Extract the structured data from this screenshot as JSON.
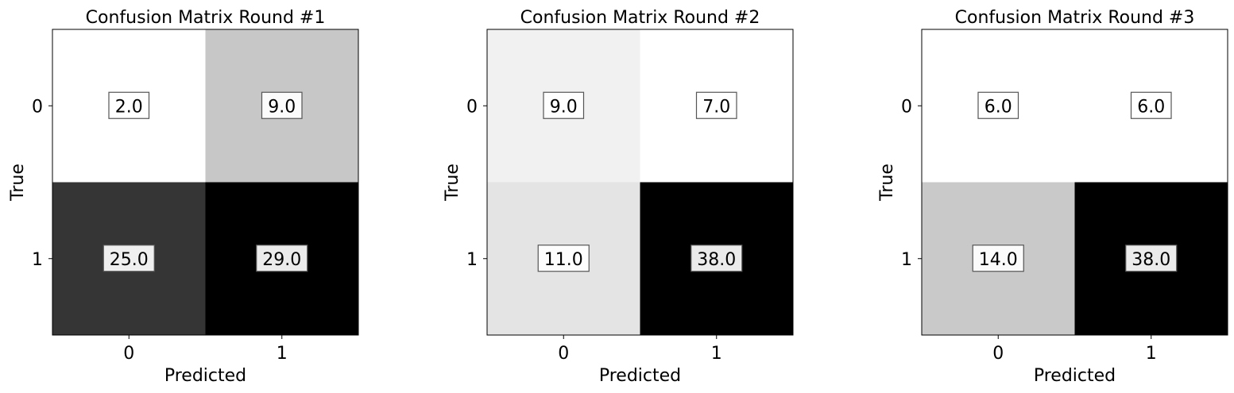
{
  "chart_data": [
    {
      "type": "heatmap",
      "title": "Confusion Matrix Round #1",
      "xlabel": "Predicted",
      "ylabel": "True",
      "x_categories": [
        "0",
        "1"
      ],
      "y_categories": [
        "0",
        "1"
      ],
      "colormap": "Greys",
      "grid": false,
      "values": [
        [
          2.0,
          9.0
        ],
        [
          25.0,
          29.0
        ]
      ],
      "value_labels": [
        [
          "2.0",
          "9.0"
        ],
        [
          "25.0",
          "29.0"
        ]
      ]
    },
    {
      "type": "heatmap",
      "title": "Confusion Matrix Round #2",
      "xlabel": "Predicted",
      "ylabel": "True",
      "x_categories": [
        "0",
        "1"
      ],
      "y_categories": [
        "0",
        "1"
      ],
      "colormap": "Greys",
      "grid": false,
      "values": [
        [
          9.0,
          7.0
        ],
        [
          11.0,
          38.0
        ]
      ],
      "value_labels": [
        [
          "9.0",
          "7.0"
        ],
        [
          "11.0",
          "38.0"
        ]
      ]
    },
    {
      "type": "heatmap",
      "title": "Confusion Matrix Round #3",
      "xlabel": "Predicted",
      "ylabel": "True",
      "x_categories": [
        "0",
        "1"
      ],
      "y_categories": [
        "0",
        "1"
      ],
      "colormap": "Greys",
      "grid": false,
      "values": [
        [
          6.0,
          6.0
        ],
        [
          14.0,
          38.0
        ]
      ],
      "value_labels": [
        [
          "6.0",
          "6.0"
        ],
        [
          "14.0",
          "38.0"
        ]
      ]
    }
  ]
}
